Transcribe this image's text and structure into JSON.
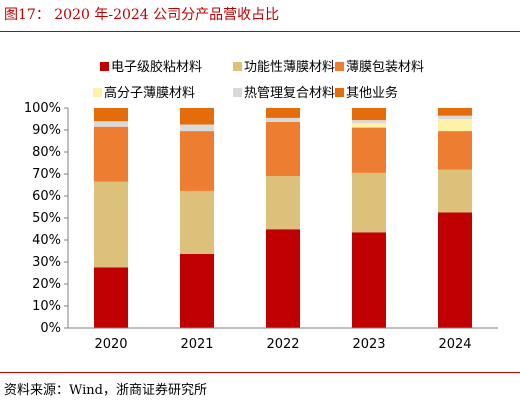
{
  "figure": {
    "title": "图17： 2020 年-2024 公司分产品营收占比",
    "source": "资料来源：Wind，浙商证券研究所"
  },
  "chart_data": {
    "type": "bar",
    "stacked": true,
    "categories": [
      "2020",
      "2021",
      "2022",
      "2023",
      "2024"
    ],
    "ylim": [
      0,
      100
    ],
    "y_ticks": [
      "0%",
      "10%",
      "20%",
      "30%",
      "40%",
      "50%",
      "60%",
      "70%",
      "80%",
      "90%",
      "100%"
    ],
    "legend_position": "top",
    "series": [
      {
        "name": "电子级胶粘材料",
        "color": "#c00000",
        "values": [
          27.5,
          33.7,
          44.9,
          43.5,
          52.5
        ]
      },
      {
        "name": "功能性薄膜材料",
        "color": "#ddc17b",
        "values": [
          39.0,
          28.6,
          24.2,
          27.0,
          19.5
        ]
      },
      {
        "name": "薄膜包装材料",
        "color": "#ed7d31",
        "values": [
          25.0,
          27.2,
          24.6,
          20.6,
          17.5
        ]
      },
      {
        "name": "高分子薄膜材料",
        "color": "#fff2a8",
        "values": [
          0,
          0,
          0,
          2.0,
          5.5
        ]
      },
      {
        "name": "热管理复合材料",
        "color": "#d9d9d9",
        "values": [
          2.5,
          3.0,
          1.8,
          1.4,
          1.5
        ]
      },
      {
        "name": "其他业务",
        "color": "#e46c0a",
        "values": [
          6.0,
          7.5,
          4.5,
          5.5,
          3.5
        ]
      }
    ]
  }
}
